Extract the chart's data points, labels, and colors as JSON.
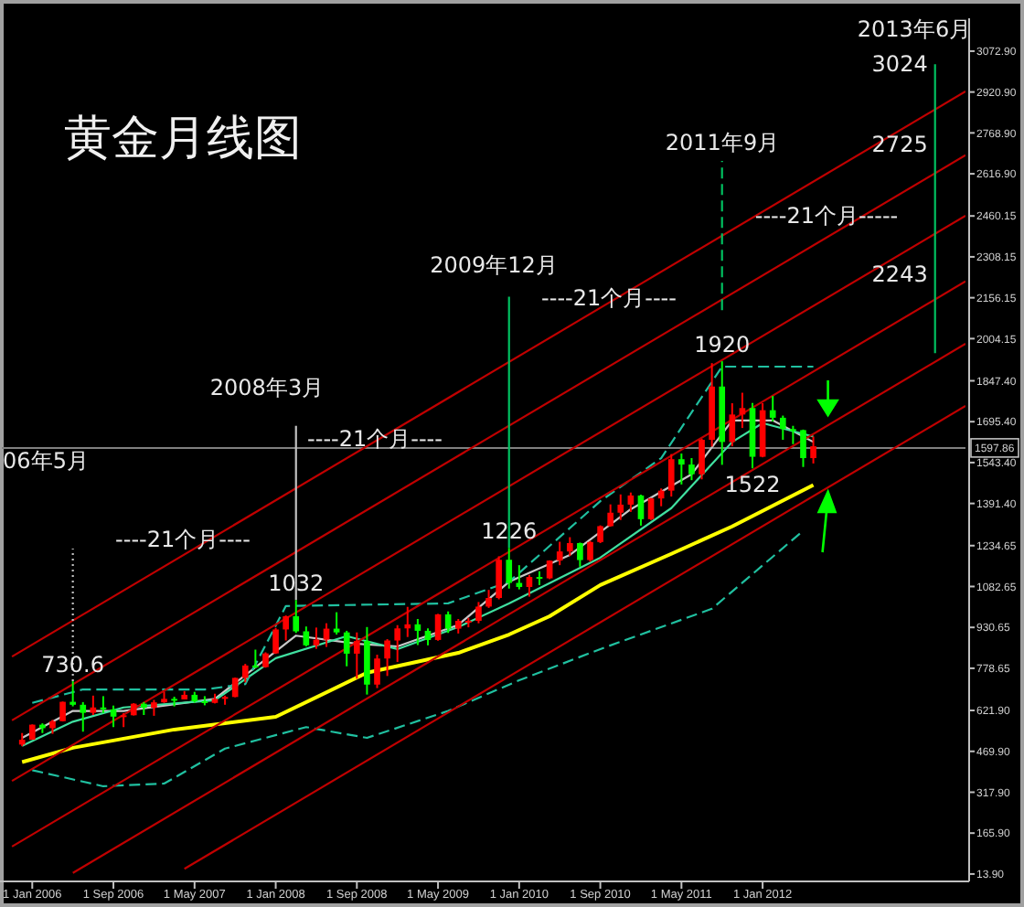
{
  "chart_data": {
    "type": "candlestick",
    "title": "黄金月线图",
    "x": [
      "2005-12",
      "2006-01",
      "2006-02",
      "2006-03",
      "2006-04",
      "2006-05",
      "2006-06",
      "2006-07",
      "2006-08",
      "2006-09",
      "2006-10",
      "2006-11",
      "2006-12",
      "2007-01",
      "2007-02",
      "2007-03",
      "2007-04",
      "2007-05",
      "2007-06",
      "2007-07",
      "2007-08",
      "2007-09",
      "2007-10",
      "2007-11",
      "2007-12",
      "2008-01",
      "2008-02",
      "2008-03",
      "2008-04",
      "2008-05",
      "2008-06",
      "2008-07",
      "2008-08",
      "2008-09",
      "2008-10",
      "2008-11",
      "2008-12",
      "2009-01",
      "2009-02",
      "2009-03",
      "2009-04",
      "2009-05",
      "2009-06",
      "2009-07",
      "2009-08",
      "2009-09",
      "2009-10",
      "2009-11",
      "2009-12",
      "2010-01",
      "2010-02",
      "2010-03",
      "2010-04",
      "2010-05",
      "2010-06",
      "2010-07",
      "2010-08",
      "2010-09",
      "2010-10",
      "2010-11",
      "2010-12",
      "2011-01",
      "2011-02",
      "2011-03",
      "2011-04",
      "2011-05",
      "2011-06",
      "2011-07",
      "2011-08",
      "2011-09",
      "2011-10",
      "2011-11",
      "2011-12",
      "2012-01",
      "2012-02",
      "2012-03",
      "2012-04",
      "2012-05",
      "2012-06"
    ],
    "ohlc": [
      [
        495,
        538,
        489,
        513
      ],
      [
        513,
        570,
        513,
        569
      ],
      [
        569,
        574,
        538,
        556
      ],
      [
        556,
        587,
        535,
        582
      ],
      [
        582,
        655,
        581,
        654
      ],
      [
        654,
        730.6,
        637,
        643
      ],
      [
        643,
        653,
        543,
        613
      ],
      [
        613,
        677,
        605,
        633
      ],
      [
        633,
        675,
        612,
        626
      ],
      [
        626,
        640,
        560,
        599
      ],
      [
        599,
        612,
        560,
        604
      ],
      [
        604,
        649,
        603,
        647
      ],
      [
        647,
        653,
        605,
        632
      ],
      [
        632,
        661,
        602,
        652
      ],
      [
        652,
        692,
        650,
        665
      ],
      [
        665,
        673,
        637,
        663
      ],
      [
        663,
        694,
        663,
        680
      ],
      [
        680,
        691,
        651,
        656
      ],
      [
        656,
        675,
        641,
        650
      ],
      [
        650,
        684,
        648,
        665
      ],
      [
        665,
        677,
        643,
        672
      ],
      [
        672,
        744,
        671,
        743
      ],
      [
        743,
        795,
        726,
        789
      ],
      [
        789,
        848,
        779,
        783
      ],
      [
        783,
        838,
        781,
        834
      ],
      [
        834,
        929,
        832,
        923
      ],
      [
        923,
        975,
        882,
        972
      ],
      [
        972,
        1032,
        910,
        916
      ],
      [
        916,
        934,
        860,
        864
      ],
      [
        864,
        930,
        851,
        885
      ],
      [
        885,
        946,
        858,
        926
      ],
      [
        926,
        987,
        904,
        912
      ],
      [
        912,
        918,
        786,
        833
      ],
      [
        833,
        912,
        740,
        880
      ],
      [
        880,
        932,
        681,
        718
      ],
      [
        718,
        829,
        705,
        815
      ],
      [
        815,
        887,
        750,
        882
      ],
      [
        882,
        939,
        802,
        927
      ],
      [
        927,
        1007,
        895,
        942
      ],
      [
        942,
        962,
        865,
        918
      ],
      [
        918,
        927,
        864,
        884
      ],
      [
        884,
        981,
        881,
        979
      ],
      [
        979,
        990,
        910,
        926
      ],
      [
        926,
        962,
        908,
        955
      ],
      [
        955,
        966,
        931,
        955
      ],
      [
        955,
        1025,
        946,
        1008
      ],
      [
        1008,
        1070,
        1003,
        1040
      ],
      [
        1040,
        1195,
        1035,
        1182
      ],
      [
        1182,
        1226,
        1075,
        1096
      ],
      [
        1096,
        1162,
        1072,
        1081
      ],
      [
        1081,
        1126,
        1045,
        1118
      ],
      [
        1118,
        1139,
        1088,
        1113
      ],
      [
        1113,
        1180,
        1110,
        1179
      ],
      [
        1179,
        1249,
        1162,
        1213
      ],
      [
        1213,
        1266,
        1196,
        1244
      ],
      [
        1244,
        1246,
        1156,
        1181
      ],
      [
        1181,
        1252,
        1175,
        1248
      ],
      [
        1248,
        1310,
        1244,
        1307
      ],
      [
        1307,
        1388,
        1305,
        1357
      ],
      [
        1357,
        1425,
        1330,
        1387
      ],
      [
        1387,
        1432,
        1360,
        1421
      ],
      [
        1421,
        1424,
        1309,
        1333
      ],
      [
        1333,
        1412,
        1330,
        1410
      ],
      [
        1410,
        1447,
        1381,
        1439
      ],
      [
        1439,
        1575,
        1417,
        1556
      ],
      [
        1556,
        1577,
        1462,
        1536
      ],
      [
        1536,
        1560,
        1478,
        1500
      ],
      [
        1500,
        1632,
        1481,
        1628
      ],
      [
        1628,
        1913,
        1603,
        1826
      ],
      [
        1826,
        1920,
        1535,
        1620
      ],
      [
        1620,
        1764,
        1604,
        1722
      ],
      [
        1722,
        1803,
        1672,
        1746
      ],
      [
        1746,
        1765,
        1522,
        1565
      ],
      [
        1565,
        1764,
        1563,
        1738
      ],
      [
        1738,
        1791,
        1696,
        1710
      ],
      [
        1710,
        1718,
        1628,
        1668
      ],
      [
        1668,
        1680,
        1612,
        1664
      ],
      [
        1664,
        1666,
        1527,
        1560
      ],
      [
        1560,
        1640,
        1540,
        1604
      ]
    ],
    "series": [
      {
        "type": "line",
        "color": "#ffff00",
        "line_style": "solid",
        "x": [
          "2005-12",
          "2006-05",
          "2007-03",
          "2008-01",
          "2008-10",
          "2009-07",
          "2009-12",
          "2010-04",
          "2010-09",
          "2011-04",
          "2011-10",
          "2012-06"
        ],
        "values": [
          430,
          483,
          551,
          598,
          762,
          836,
          904,
          972,
          1088,
          1204,
          1306,
          1460
        ]
      },
      {
        "type": "line",
        "color": "#c8c8c8",
        "line_style": "solid",
        "x": [
          "2005-12",
          "2006-05",
          "2006-10",
          "2007-07",
          "2008-03",
          "2008-09",
          "2009-01",
          "2009-07",
          "2009-12",
          "2010-06",
          "2010-12",
          "2011-06",
          "2011-10",
          "2012-02",
          "2012-06"
        ],
        "values": [
          520,
          620,
          620,
          665,
          900,
          870,
          860,
          940,
          1100,
          1200,
          1370,
          1500,
          1700,
          1700,
          1620
        ]
      },
      {
        "type": "line",
        "color": "#40e0a0",
        "line_style": "solid",
        "x": [
          "2005-12",
          "2006-05",
          "2006-10",
          "2007-07",
          "2008-01",
          "2008-08",
          "2009-01",
          "2009-07",
          "2009-12",
          "2010-09",
          "2011-04",
          "2011-10",
          "2012-01",
          "2012-06"
        ],
        "values": [
          490,
          580,
          633,
          660,
          816,
          898,
          850,
          932,
          1020,
          1190,
          1374,
          1620,
          1690,
          1640
        ]
      },
      {
        "type": "line",
        "color": "#20c0a0",
        "line_style": "dashed",
        "x": [
          "2006-01",
          "2006-06",
          "2007-06",
          "2007-10",
          "2008-02",
          "2009-06",
          "2009-12",
          "2010-09",
          "2011-03",
          "2011-09",
          "2012-06"
        ],
        "values": [
          650,
          700,
          700,
          720,
          1010,
          1020,
          1100,
          1400,
          1560,
          1900,
          1900
        ]
      },
      {
        "type": "line",
        "color": "#20c0a0",
        "line_style": "dashed",
        "x": [
          "2006-01",
          "2006-08",
          "2007-02",
          "2007-08",
          "2008-04",
          "2008-10",
          "2009-06",
          "2010-01",
          "2010-09",
          "2011-08",
          "2012-05"
        ],
        "values": [
          400,
          340,
          350,
          480,
          560,
          520,
          620,
          734,
          850,
          1000,
          1290
        ]
      },
      {
        "type": "line",
        "color": "#c00000",
        "line_style": "solid",
        "x": [
          "2005-11",
          "2013-09"
        ],
        "values": [
          822,
          2923
        ]
      },
      {
        "type": "line",
        "color": "#c00000",
        "line_style": "solid",
        "x": [
          "2005-11",
          "2013-09"
        ],
        "values": [
          585,
          2686
        ]
      },
      {
        "type": "line",
        "color": "#c00000",
        "line_style": "solid",
        "x": [
          "2005-11",
          "2013-09"
        ],
        "values": [
          360,
          2461
        ]
      },
      {
        "type": "line",
        "color": "#c00000",
        "line_style": "solid",
        "x": [
          "2005-11",
          "2013-09"
        ],
        "values": [
          116,
          2217
        ]
      },
      {
        "type": "line",
        "color": "#c00000",
        "line_style": "solid",
        "x": [
          "2006-05",
          "2013-09"
        ],
        "values": [
          18,
          1985
        ]
      },
      {
        "type": "line",
        "color": "#c00000",
        "line_style": "solid",
        "x": [
          "2007-04",
          "2013-09"
        ],
        "values": [
          33,
          1754
        ]
      },
      {
        "type": "line",
        "color": "#c0c0c0",
        "line_style": "dotted",
        "x": [
          "2006-05",
          "2006-05"
        ],
        "values": [
          731,
          1224
        ]
      },
      {
        "type": "line",
        "color": "#c0c0c0",
        "line_style": "solid",
        "x": [
          "2008-03",
          "2008-03"
        ],
        "values": [
          1032,
          1680
        ]
      },
      {
        "type": "line",
        "color": "#00c060",
        "line_style": "solid",
        "x": [
          "2009-12",
          "2009-12"
        ],
        "values": [
          1226,
          2160
        ]
      },
      {
        "type": "line",
        "color": "#00c060",
        "line_style": "dashed",
        "x": [
          "2011-09",
          "2011-09"
        ],
        "values": [
          2110,
          2665
        ]
      },
      {
        "type": "line",
        "color": "#00c060",
        "line_style": "solid",
        "x": [
          "2013-06",
          "2013-06"
        ],
        "values": [
          1950,
          3024
        ]
      }
    ],
    "xlim": [
      "2005-10",
      "2013-09"
    ],
    "xticks": [
      {
        "value": "2006-01",
        "label": "1 Jan 2006"
      },
      {
        "value": "2006-09",
        "label": "1 Sep 2006"
      },
      {
        "value": "2007-05",
        "label": "1 May 2007"
      },
      {
        "value": "2008-01",
        "label": "1 Jan 2008"
      },
      {
        "value": "2008-09",
        "label": "1 Sep 2008"
      },
      {
        "value": "2009-05",
        "label": "1 May 2009"
      },
      {
        "value": "2010-01",
        "label": "1 Jan 2010"
      },
      {
        "value": "2010-09",
        "label": "1 Sep 2010"
      },
      {
        "value": "2011-05",
        "label": "1 May 2011"
      },
      {
        "value": "2012-01",
        "label": "1 Jan 2012"
      }
    ],
    "ylim": [
      0,
      3195
    ],
    "yticks": [
      {
        "value": 13.9,
        "label": "13.90"
      },
      {
        "value": 165.9,
        "label": "165.90"
      },
      {
        "value": 317.9,
        "label": "317.90"
      },
      {
        "value": 469.9,
        "label": "469.90"
      },
      {
        "value": 621.9,
        "label": "621.90"
      },
      {
        "value": 778.65,
        "label": "778.65"
      },
      {
        "value": 930.65,
        "label": "930.65"
      },
      {
        "value": 1082.65,
        "label": "1082.65"
      },
      {
        "value": 1234.65,
        "label": "1234.65"
      },
      {
        "value": 1391.4,
        "label": "1391.40"
      },
      {
        "value": 1543.4,
        "label": "1543.40"
      },
      {
        "value": 1695.4,
        "label": "1695.40"
      },
      {
        "value": 1847.4,
        "label": "1847.40"
      },
      {
        "value": 2004.15,
        "label": "2004.15"
      },
      {
        "value": 2156.15,
        "label": "2156.15"
      },
      {
        "value": 2308.15,
        "label": "2308.15"
      },
      {
        "value": 2460.15,
        "label": "2460.15"
      },
      {
        "value": 2616.9,
        "label": "2616.90"
      },
      {
        "value": 2768.9,
        "label": "2768.90"
      },
      {
        "value": 2920.9,
        "label": "2920.90"
      },
      {
        "value": 3072.9,
        "label": "3072.90"
      }
    ],
    "ref_lines": [
      {
        "axis": "y",
        "value": 1597.86,
        "label": "1597.86",
        "color": "#808080"
      }
    ],
    "annotations": [
      "06年5月",
      "2008年3月",
      "2009年12月",
      "2011年9月",
      "2013年6月",
      "----21个月----",
      "----21个月----",
      "----21个月----",
      "----21个月-----",
      {
        "text": "730.6",
        "x": "2006-05",
        "y": 730.6
      },
      {
        "text": "1032",
        "x": "2008-03",
        "y": 1032
      },
      {
        "text": "1226",
        "x": "2009-12",
        "y": 1226
      },
      {
        "text": "1920",
        "x": "2011-09",
        "y": 1920
      },
      {
        "text": "1522",
        "x": "2011-12",
        "y": 1522
      },
      {
        "text": "3024",
        "x": "2013-06",
        "y": 3024
      },
      {
        "text": "2725",
        "x": "2013-06",
        "y": 2725
      },
      {
        "text": "2243",
        "x": "2013-06",
        "y": 2243
      }
    ]
  }
}
